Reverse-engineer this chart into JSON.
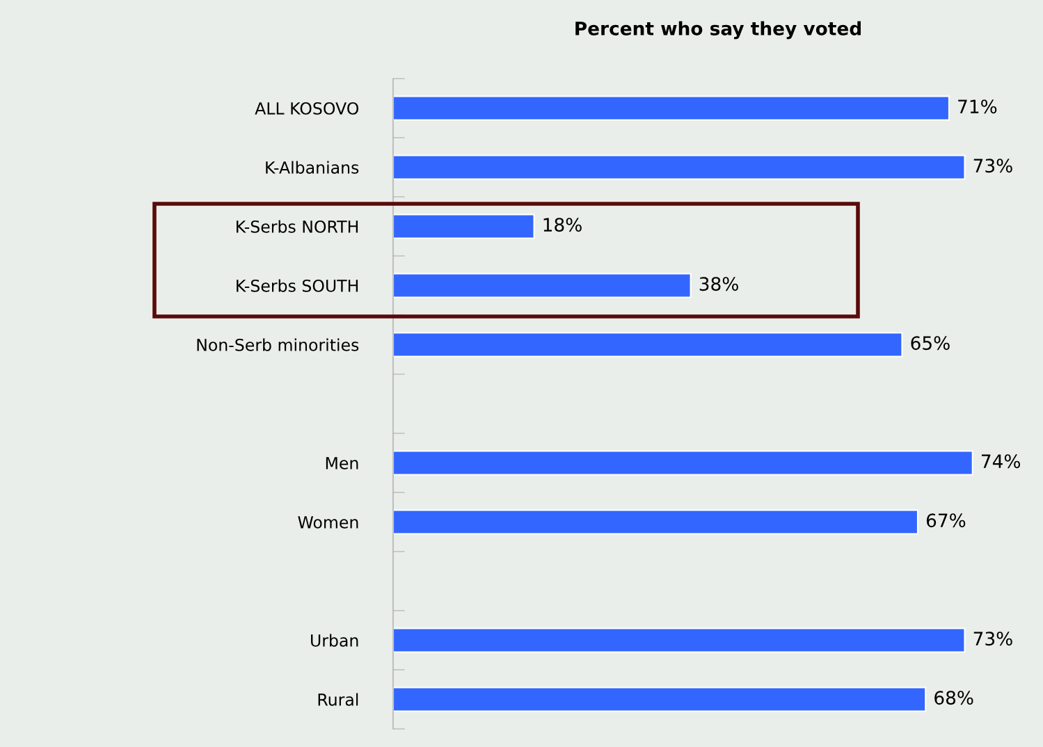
{
  "chart_data": {
    "type": "bar",
    "orientation": "horizontal",
    "title": "Percent who say they voted",
    "categories": [
      "ALL KOSOVO",
      "K-Albanians",
      "K-Serbs NORTH",
      "K-Serbs SOUTH",
      "Non-Serb minorities",
      null,
      "Men",
      "Women",
      null,
      "Urban",
      "Rural"
    ],
    "values": [
      71,
      73,
      18,
      38,
      65,
      null,
      74,
      67,
      null,
      73,
      68
    ],
    "value_labels": [
      "71%",
      "73%",
      "18%",
      "38%",
      "65%",
      null,
      "74%",
      "67%",
      null,
      "73%",
      "68%"
    ],
    "color": "#3366ff",
    "xlim": [
      0,
      83
    ],
    "tick_labels": "y",
    "grid": false,
    "legend": false
  }
}
